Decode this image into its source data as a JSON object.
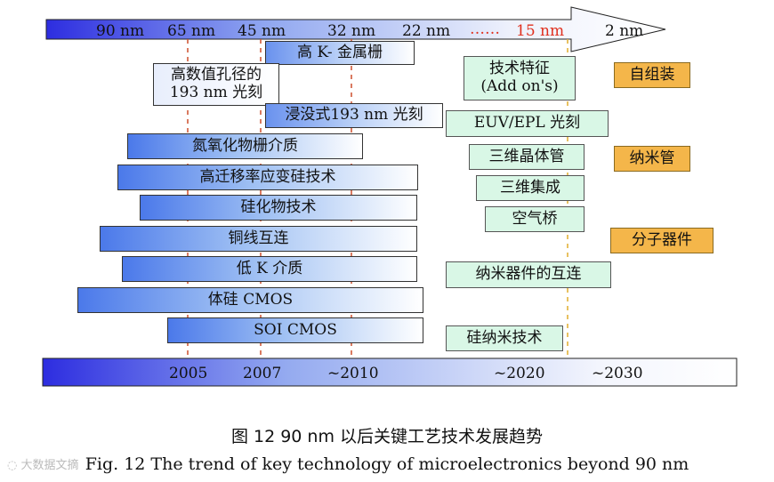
{
  "top_arrow": {
    "labels": [
      "90 nm",
      "65 nm",
      "45 nm",
      "32 nm",
      "22 nm",
      "……",
      "15 nm",
      "2 nm"
    ],
    "highlight_color": "#e0301e"
  },
  "bottom_bar": {
    "labels": [
      "2005",
      "2007",
      "~2010",
      "~2020",
      "~2030"
    ]
  },
  "blue_bars": [
    {
      "label": "高 K- 金属栅"
    },
    {
      "label": "高数值孔径的",
      "label2": "193 nm 光刻"
    },
    {
      "label": "浸没式193 nm 光刻"
    },
    {
      "label": "氮氧化物栅介质"
    },
    {
      "label": "高迁移率应变硅技术"
    },
    {
      "label": "硅化物技术"
    },
    {
      "label": "铜线互连"
    },
    {
      "label": "低 K 介质"
    },
    {
      "label": "体硅 CMOS"
    },
    {
      "label": "SOI CMOS"
    }
  ],
  "green_boxes": [
    {
      "label": "技术特征",
      "label2": "(Add on's)"
    },
    {
      "label": "EUV/EPL 光刻"
    },
    {
      "label": "三维晶体管"
    },
    {
      "label": "三维集成"
    },
    {
      "label": "空气桥"
    },
    {
      "label": "纳米器件的互连"
    },
    {
      "label": "硅纳米技术"
    }
  ],
  "orange_boxes": [
    {
      "label": "自组装"
    },
    {
      "label": "纳米管"
    },
    {
      "label": "分子器件"
    }
  ],
  "caption_cn": "图 12    90 nm 以后关键工艺技术发展趋势",
  "caption_en": "Fig. 12    The trend of key technology of microelectronics beyond 90 nm",
  "watermark": "大数据文摘",
  "colors": {
    "blue_dark": "#3a3ad8",
    "guide_red": "#d05a3a",
    "guide_yellow": "#e2b23a"
  }
}
